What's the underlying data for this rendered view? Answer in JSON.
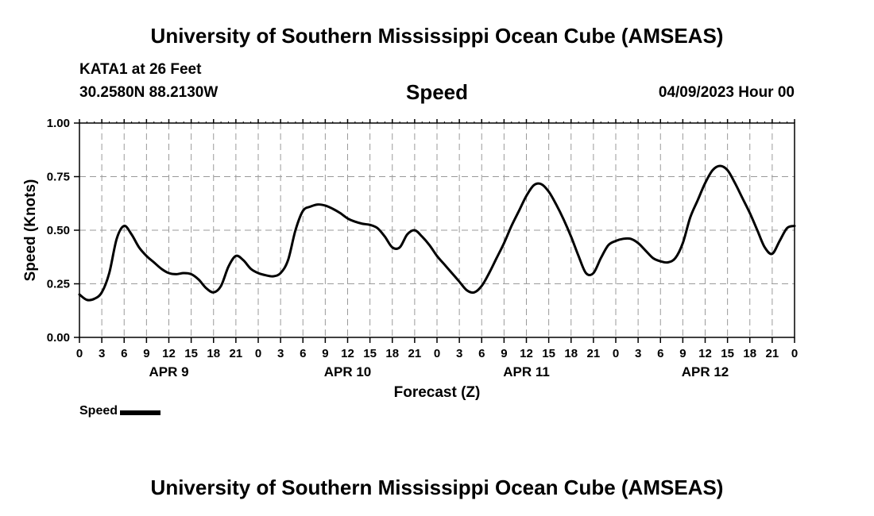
{
  "header": {
    "title": "University of Southern Mississippi Ocean Cube (AMSEAS)",
    "station": "KATA1 at 26 Feet",
    "coords": "30.2580N  88.2130W",
    "variable": "Speed",
    "datetime": "04/09/2023 Hour 00"
  },
  "footer": {
    "title": "University of Southern Mississippi Ocean Cube (AMSEAS)"
  },
  "legend": {
    "label": "Speed"
  },
  "chart_data": {
    "type": "line",
    "title": "Speed",
    "xlabel": "Forecast (Z)",
    "ylabel": "Speed (Knots)",
    "xlim": [
      0,
      96
    ],
    "ylim": [
      0,
      1
    ],
    "grid": true,
    "legend_position": "bottom-left",
    "y_ticks": [
      {
        "value": 0,
        "label": "0.00"
      },
      {
        "value": 0.25,
        "label": "0.25"
      },
      {
        "value": 0.5,
        "label": "0.50"
      },
      {
        "value": 0.75,
        "label": "0.75"
      },
      {
        "value": 1.0,
        "label": "1.00"
      }
    ],
    "x_tick_labels": [
      "0",
      "3",
      "6",
      "9",
      "12",
      "15",
      "18",
      "21",
      "0",
      "3",
      "6",
      "9",
      "12",
      "15",
      "18",
      "21",
      "0",
      "3",
      "6",
      "9",
      "12",
      "15",
      "18",
      "21",
      "0",
      "3",
      "6",
      "9",
      "12",
      "15",
      "18",
      "21",
      "0"
    ],
    "day_labels": [
      {
        "hour": 12,
        "label": "APR 9"
      },
      {
        "hour": 36,
        "label": "APR 10"
      },
      {
        "hour": 60,
        "label": "APR 11"
      },
      {
        "hour": 84,
        "label": "APR 12"
      }
    ],
    "series": [
      {
        "name": "Speed",
        "color": "#000000",
        "x": [
          0,
          1,
          2,
          3,
          4,
          5,
          6,
          7,
          8,
          9,
          10,
          11,
          12,
          13,
          14,
          15,
          16,
          17,
          18,
          19,
          20,
          21,
          22,
          23,
          24,
          25,
          26,
          27,
          28,
          29,
          30,
          31,
          32,
          33,
          34,
          35,
          36,
          37,
          38,
          39,
          40,
          41,
          42,
          43,
          44,
          45,
          46,
          47,
          48,
          49,
          50,
          51,
          52,
          53,
          54,
          55,
          56,
          57,
          58,
          59,
          60,
          61,
          62,
          63,
          64,
          65,
          66,
          67,
          68,
          69,
          70,
          71,
          72,
          73,
          74,
          75,
          76,
          77,
          78,
          79,
          80,
          81,
          82,
          83,
          84,
          85,
          86,
          87,
          88,
          89,
          90,
          91,
          92,
          93,
          94,
          95,
          96
        ],
        "values": [
          0.2,
          0.175,
          0.18,
          0.21,
          0.3,
          0.46,
          0.52,
          0.48,
          0.42,
          0.38,
          0.35,
          0.32,
          0.3,
          0.295,
          0.3,
          0.295,
          0.27,
          0.23,
          0.21,
          0.24,
          0.33,
          0.38,
          0.36,
          0.32,
          0.3,
          0.29,
          0.285,
          0.3,
          0.36,
          0.5,
          0.59,
          0.61,
          0.62,
          0.615,
          0.6,
          0.58,
          0.555,
          0.54,
          0.53,
          0.525,
          0.51,
          0.47,
          0.42,
          0.42,
          0.48,
          0.5,
          0.47,
          0.43,
          0.38,
          0.34,
          0.3,
          0.26,
          0.22,
          0.21,
          0.24,
          0.3,
          0.37,
          0.44,
          0.52,
          0.59,
          0.66,
          0.71,
          0.715,
          0.68,
          0.62,
          0.55,
          0.47,
          0.38,
          0.3,
          0.3,
          0.37,
          0.43,
          0.45,
          0.46,
          0.46,
          0.44,
          0.405,
          0.37,
          0.355,
          0.35,
          0.37,
          0.44,
          0.56,
          0.64,
          0.72,
          0.78,
          0.8,
          0.78,
          0.72,
          0.65,
          0.58,
          0.5,
          0.42,
          0.39,
          0.45,
          0.51,
          0.52
        ]
      }
    ]
  }
}
